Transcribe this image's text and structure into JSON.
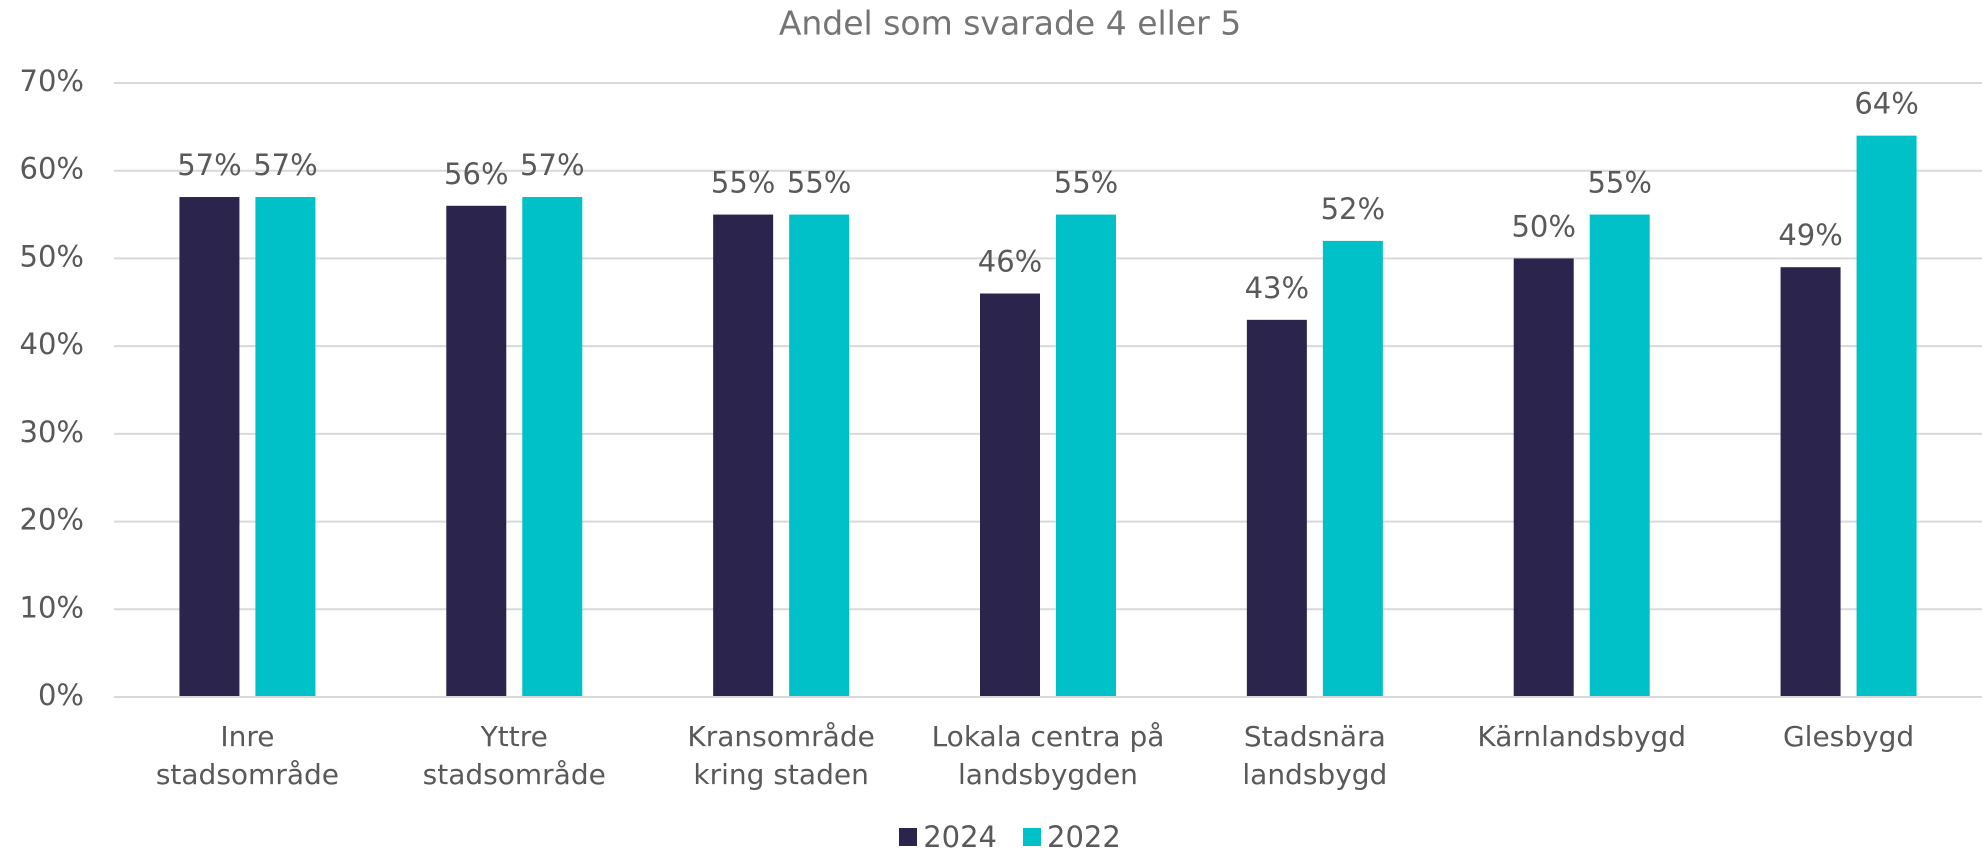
{
  "chart_data": {
    "type": "bar",
    "title": "Andel som svarade 4 eller 5",
    "categories": [
      "Inre\nstadsområde",
      "Yttre\nstadsområde",
      "Kransområde\nkring staden",
      "Lokala centra på\nlandsbygden",
      "Stadsnära\nlandsbygd",
      "Kärnlandsbygd",
      "Glesbygd"
    ],
    "series": [
      {
        "name": "2024",
        "color": "#2b244d",
        "values": [
          57,
          56,
          55,
          46,
          43,
          50,
          49
        ],
        "value_labels": [
          "57%",
          "56%",
          "55%",
          "46%",
          "43%",
          "50%",
          "49%"
        ]
      },
      {
        "name": "2022",
        "color": "#00c0c8",
        "values": [
          57,
          57,
          55,
          55,
          52,
          55,
          64
        ],
        "value_labels": [
          "57%",
          "57%",
          "55%",
          "55%",
          "52%",
          "55%",
          "64%"
        ]
      }
    ],
    "ylim": [
      0,
      70
    ],
    "yticks": [
      {
        "value": 0,
        "label": "0%"
      },
      {
        "value": 10,
        "label": "10%"
      },
      {
        "value": 20,
        "label": "20%"
      },
      {
        "value": 30,
        "label": "30%"
      },
      {
        "value": 40,
        "label": "40%"
      },
      {
        "value": 50,
        "label": "50%"
      },
      {
        "value": 60,
        "label": "60%"
      },
      {
        "value": 70,
        "label": "70%"
      }
    ],
    "grid": true,
    "legend": "bottom"
  }
}
